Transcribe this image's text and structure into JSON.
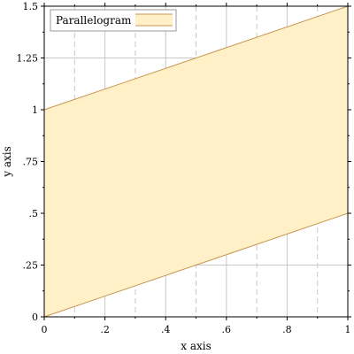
{
  "chart_data": {
    "type": "area",
    "title": "",
    "xlabel": "x axis",
    "ylabel": "y axis",
    "xlim": [
      0,
      1
    ],
    "ylim": [
      0,
      1.5
    ],
    "x_ticks": [
      0,
      0.2,
      0.4,
      0.6,
      0.8,
      1
    ],
    "x_tick_labels": [
      "0",
      ".2",
      ".4",
      ".6",
      ".8",
      "1"
    ],
    "x_minor_ticks": [
      0.1,
      0.3,
      0.5,
      0.7,
      0.9
    ],
    "y_ticks": [
      0,
      0.25,
      0.5,
      0.75,
      1,
      1.25,
      1.5
    ],
    "y_tick_labels": [
      "0",
      ".25",
      ".5",
      ".75",
      "1",
      "1.25",
      "1.5"
    ],
    "grid": true,
    "legend_position": "top-left",
    "series": [
      {
        "name": "Parallelogram",
        "lower": {
          "x": [
            0,
            1
          ],
          "y": [
            0,
            0.5
          ]
        },
        "upper": {
          "x": [
            0,
            1
          ],
          "y": [
            1,
            1.5
          ]
        },
        "fill_color": "#fff0c8",
        "line_color": "#c89650"
      }
    ]
  }
}
